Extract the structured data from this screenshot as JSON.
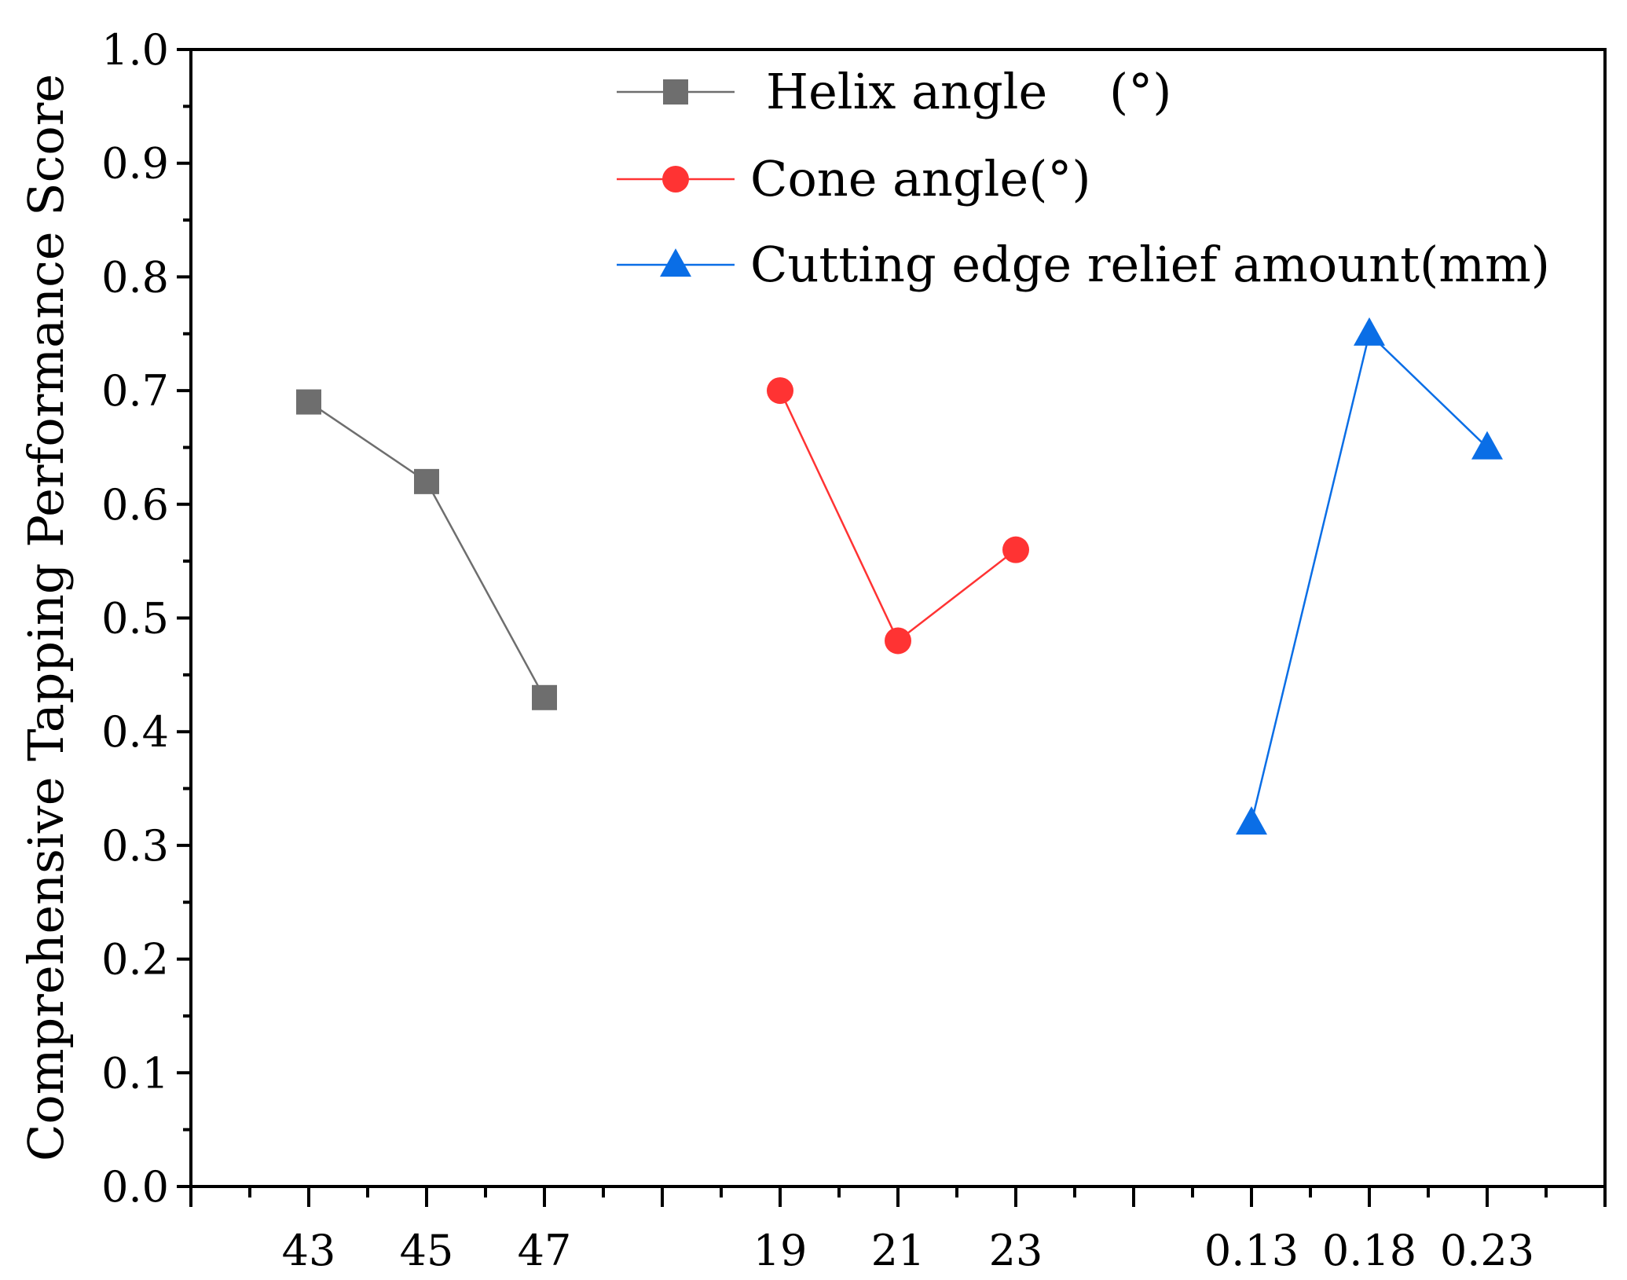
{
  "chart_data": {
    "type": "line",
    "title": "",
    "ylabel": "Comprehensive Tapping Performance Score",
    "xlabel": "",
    "ylim": [
      0.0,
      1.0
    ],
    "yticks": [
      "0.0",
      "0.1",
      "0.2",
      "0.3",
      "0.4",
      "0.5",
      "0.6",
      "0.7",
      "0.8",
      "0.9",
      "1.0"
    ],
    "x_slots": [
      "43",
      "45",
      "47",
      "",
      "19",
      "21",
      "23",
      "",
      "0.13",
      "0.18",
      "0.23"
    ],
    "legend_position": "top-right",
    "series": [
      {
        "name": "Helix angle    (°)",
        "color": "#6e6e6e",
        "marker": "square",
        "categories": [
          "43",
          "45",
          "47"
        ],
        "values": [
          0.69,
          0.62,
          0.43
        ]
      },
      {
        "name": "Cone angle(°)",
        "color": "#ff3333",
        "marker": "circle",
        "categories": [
          "19",
          "21",
          "23"
        ],
        "values": [
          0.7,
          0.48,
          0.56
        ]
      },
      {
        "name": "Cutting edge relief amount(mm)",
        "color": "#0a6ee6",
        "marker": "triangle",
        "categories": [
          "0.13",
          "0.18",
          "0.23"
        ],
        "values": [
          0.32,
          0.75,
          0.65
        ]
      }
    ]
  }
}
